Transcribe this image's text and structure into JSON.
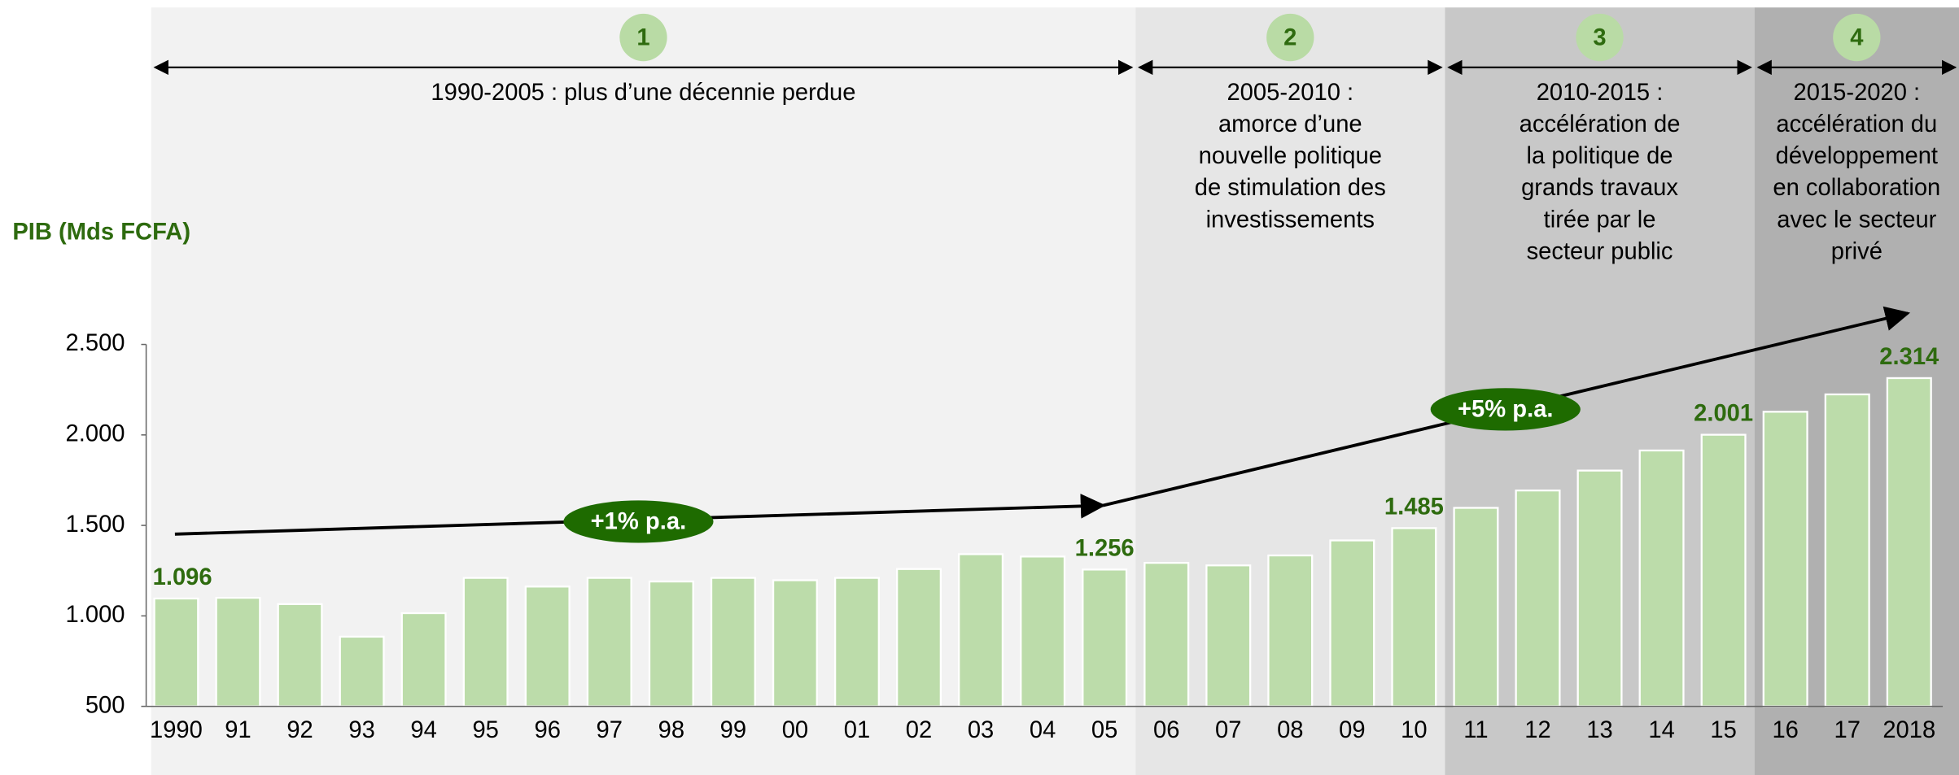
{
  "chart_data": {
    "type": "bar",
    "y_label": "PIB (Mds FCFA)",
    "categories": [
      "1990",
      "91",
      "92",
      "93",
      "94",
      "95",
      "96",
      "97",
      "98",
      "99",
      "00",
      "01",
      "02",
      "03",
      "04",
      "05",
      "06",
      "07",
      "08",
      "09",
      "10",
      "11",
      "12",
      "13",
      "14",
      "15",
      "16",
      "17",
      "2018"
    ],
    "values": [
      1096,
      1100,
      1065,
      885,
      1015,
      1210,
      1162,
      1210,
      1190,
      1210,
      1197,
      1210,
      1259,
      1341,
      1328,
      1256,
      1293,
      1279,
      1334,
      1417,
      1485,
      1597,
      1693,
      1803,
      1914,
      2001,
      2128,
      2224,
      2314
    ],
    "value_labels": [
      "1.096",
      null,
      null,
      null,
      null,
      null,
      null,
      null,
      null,
      null,
      null,
      null,
      null,
      null,
      null,
      "1.256",
      null,
      null,
      null,
      null,
      "1.485",
      null,
      null,
      null,
      null,
      "2.001",
      null,
      null,
      "2.314"
    ],
    "color": "#bcdcaa",
    "ylim": [
      500,
      2500
    ],
    "yticks": [
      500,
      {
        "value": 1000,
        "label": "1.000"
      },
      {
        "value": 1500,
        "label": "1.500"
      },
      {
        "value": 2000,
        "label": "2.000"
      },
      {
        "value": 2500,
        "label": "2.500"
      }
    ],
    "phases": [
      {
        "number": "1",
        "lines": [
          "1990-2005 : plus d’une décennie perdue"
        ]
      },
      {
        "number": "2",
        "lines": [
          "2005-2010 :",
          "amorce d’une",
          "nouvelle politique",
          "de stimulation des",
          "investissements"
        ]
      },
      {
        "number": "3",
        "lines": [
          "2010-2015 :",
          "accélération de",
          "la politique de",
          "grands travaux",
          "tirée par le",
          "secteur public"
        ]
      },
      {
        "number": "4",
        "lines": [
          "2015-2020 :",
          "accélération du",
          "développement",
          "en collaboration",
          "avec le secteur",
          "privé"
        ]
      }
    ],
    "annotations": [
      "+1% p.a.",
      "+5% p.a."
    ]
  }
}
